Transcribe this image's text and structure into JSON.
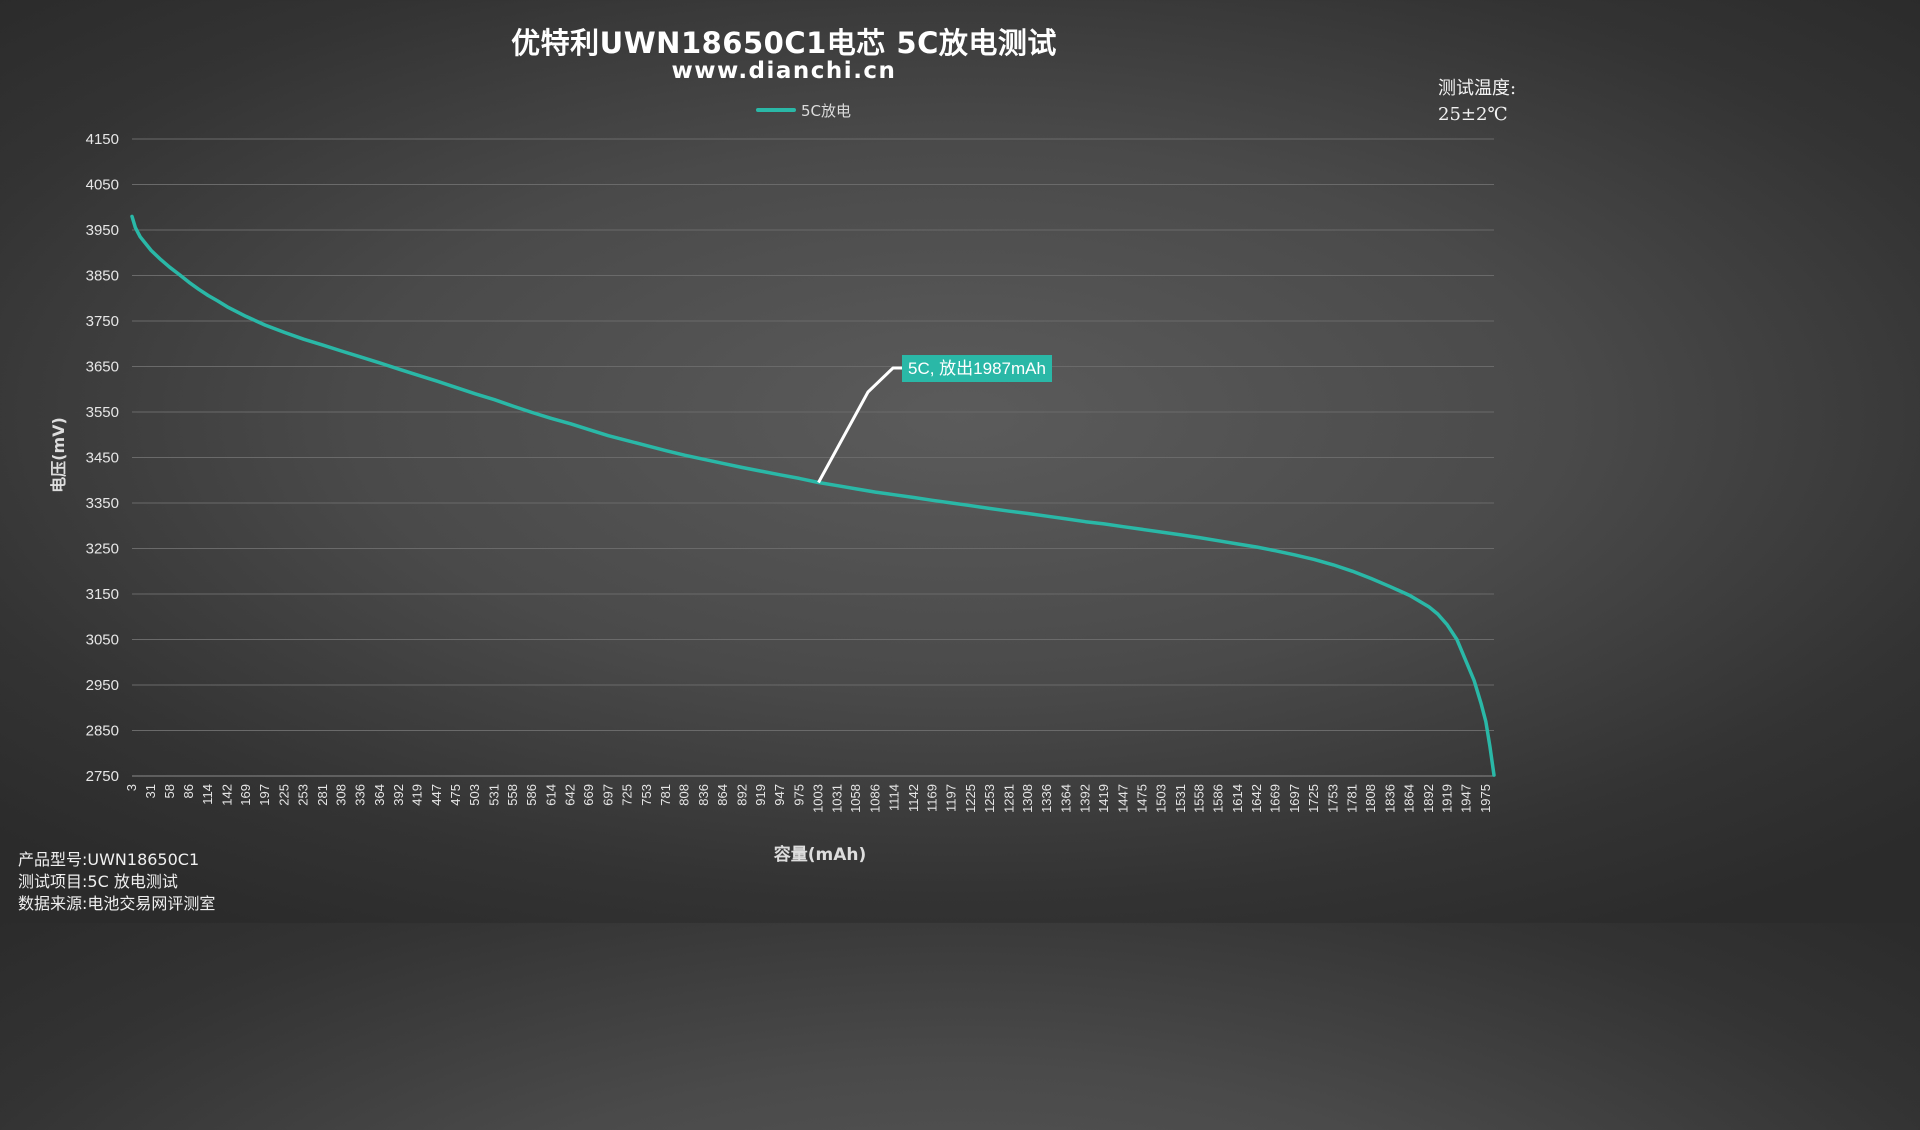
{
  "header": {
    "title": "优特利UWN18650C1电芯 5C放电测试",
    "subtitle": "www.dianchi.cn"
  },
  "legend": {
    "label": "5C放电",
    "color": "#2ab8a7"
  },
  "temperature": {
    "line1": "测试温度:",
    "line2": "25±2℃"
  },
  "info": {
    "model": "产品型号:UWN18650C1",
    "item": "测试项目:5C 放电测试",
    "source": "数据来源:电池交易网评测室"
  },
  "annotation": {
    "text": "5C, 放出1987mAh"
  },
  "chart_data": {
    "type": "line",
    "title": "优特利UWN18650C1电芯 5C放电测试",
    "subtitle": "www.dianchi.cn",
    "xlabel": "容量(mAh)",
    "ylabel": "电压(mV)",
    "xlim": [
      3,
      1987
    ],
    "ylim": [
      2750,
      4150
    ],
    "y_ticks": [
      4150,
      4050,
      3950,
      3850,
      3750,
      3650,
      3550,
      3450,
      3350,
      3250,
      3150,
      3050,
      2950,
      2850,
      2750
    ],
    "x_ticks": [
      3,
      31,
      58,
      86,
      114,
      142,
      169,
      197,
      225,
      253,
      281,
      308,
      336,
      364,
      392,
      419,
      447,
      475,
      503,
      531,
      558,
      586,
      614,
      642,
      669,
      697,
      725,
      753,
      781,
      808,
      836,
      864,
      892,
      919,
      947,
      975,
      1003,
      1031,
      1058,
      1086,
      1114,
      1142,
      1169,
      1197,
      1225,
      1253,
      1281,
      1308,
      1336,
      1364,
      1392,
      1419,
      1447,
      1475,
      1503,
      1531,
      1558,
      1586,
      1614,
      1642,
      1669,
      1697,
      1725,
      1753,
      1781,
      1808,
      1836,
      1864,
      1892,
      1919,
      1947,
      1975
    ],
    "grid": true,
    "legend_position": "top-center",
    "series": [
      {
        "name": "5C放电",
        "color": "#2ab8a7",
        "points": [
          [
            3,
            3980
          ],
          [
            8,
            3955
          ],
          [
            15,
            3935
          ],
          [
            31,
            3905
          ],
          [
            45,
            3885
          ],
          [
            58,
            3868
          ],
          [
            72,
            3852
          ],
          [
            86,
            3835
          ],
          [
            100,
            3820
          ],
          [
            114,
            3806
          ],
          [
            128,
            3794
          ],
          [
            142,
            3781
          ],
          [
            169,
            3760
          ],
          [
            197,
            3741
          ],
          [
            225,
            3725
          ],
          [
            253,
            3710
          ],
          [
            281,
            3697
          ],
          [
            308,
            3684
          ],
          [
            336,
            3671
          ],
          [
            364,
            3658
          ],
          [
            392,
            3644
          ],
          [
            419,
            3631
          ],
          [
            447,
            3618
          ],
          [
            475,
            3604
          ],
          [
            503,
            3590
          ],
          [
            531,
            3577
          ],
          [
            558,
            3563
          ],
          [
            586,
            3549
          ],
          [
            614,
            3536
          ],
          [
            642,
            3524
          ],
          [
            669,
            3511
          ],
          [
            697,
            3498
          ],
          [
            725,
            3487
          ],
          [
            753,
            3476
          ],
          [
            781,
            3465
          ],
          [
            808,
            3455
          ],
          [
            836,
            3446
          ],
          [
            864,
            3437
          ],
          [
            892,
            3428
          ],
          [
            919,
            3420
          ],
          [
            947,
            3412
          ],
          [
            975,
            3404
          ],
          [
            1003,
            3395
          ],
          [
            1031,
            3388
          ],
          [
            1058,
            3381
          ],
          [
            1086,
            3374
          ],
          [
            1114,
            3368
          ],
          [
            1142,
            3362
          ],
          [
            1169,
            3356
          ],
          [
            1197,
            3350
          ],
          [
            1225,
            3344
          ],
          [
            1253,
            3338
          ],
          [
            1281,
            3332
          ],
          [
            1308,
            3327
          ],
          [
            1336,
            3321
          ],
          [
            1364,
            3315
          ],
          [
            1392,
            3309
          ],
          [
            1419,
            3304
          ],
          [
            1447,
            3298
          ],
          [
            1475,
            3292
          ],
          [
            1503,
            3286
          ],
          [
            1531,
            3280
          ],
          [
            1558,
            3274
          ],
          [
            1586,
            3267
          ],
          [
            1614,
            3260
          ],
          [
            1642,
            3253
          ],
          [
            1669,
            3245
          ],
          [
            1697,
            3236
          ],
          [
            1725,
            3226
          ],
          [
            1753,
            3214
          ],
          [
            1781,
            3200
          ],
          [
            1808,
            3184
          ],
          [
            1836,
            3166
          ],
          [
            1864,
            3147
          ],
          [
            1892,
            3122
          ],
          [
            1905,
            3106
          ],
          [
            1919,
            3082
          ],
          [
            1933,
            3050
          ],
          [
            1947,
            3000
          ],
          [
            1958,
            2960
          ],
          [
            1968,
            2910
          ],
          [
            1975,
            2870
          ],
          [
            1981,
            2815
          ],
          [
            1987,
            2752
          ]
        ]
      }
    ],
    "annotation": {
      "text": "5C, 放出1987mAh",
      "x": 1003,
      "y": 3395
    }
  }
}
